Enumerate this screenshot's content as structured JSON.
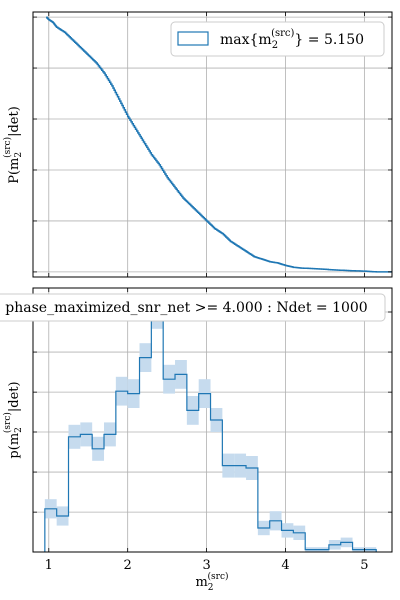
{
  "colors": {
    "series": "#1f77b4",
    "band": "#c6dbee",
    "grid": "#b0b0b0"
  },
  "chart_data": [
    {
      "type": "line",
      "ylabel_main": "P(m",
      "ylabel_sub": "2",
      "ylabel_sup": "(src)",
      "ylabel_tail": "|det)",
      "xlim": [
        0.8,
        5.35
      ],
      "ylim": [
        -0.02,
        1.02
      ],
      "legend": {
        "placement": "top-right",
        "prefix": "max{m",
        "sub": "2",
        "sup": "(src)",
        "suffix": "} = 5.150"
      },
      "grid": true,
      "x": [
        0.97,
        1.0,
        1.05,
        1.1,
        1.2,
        1.3,
        1.4,
        1.5,
        1.6,
        1.7,
        1.8,
        1.9,
        2.0,
        2.1,
        2.2,
        2.3,
        2.4,
        2.5,
        2.6,
        2.7,
        2.8,
        2.9,
        3.0,
        3.1,
        3.2,
        3.3,
        3.4,
        3.5,
        3.6,
        3.7,
        3.8,
        3.9,
        4.0,
        4.1,
        4.2,
        4.4,
        4.6,
        4.8,
        5.0,
        5.15,
        5.35
      ],
      "y": [
        1.0,
        0.99,
        0.98,
        0.96,
        0.94,
        0.91,
        0.88,
        0.85,
        0.82,
        0.78,
        0.73,
        0.67,
        0.61,
        0.56,
        0.51,
        0.46,
        0.42,
        0.37,
        0.33,
        0.29,
        0.26,
        0.23,
        0.2,
        0.17,
        0.15,
        0.12,
        0.1,
        0.08,
        0.06,
        0.05,
        0.04,
        0.035,
        0.025,
        0.018,
        0.015,
        0.012,
        0.008,
        0.005,
        0.003,
        0.0,
        0.0
      ]
    },
    {
      "type": "bar",
      "title": "phase_maximized_snr_net >= 4.000 : Ndet = 1000",
      "xlabel_main": "m",
      "xlabel_sub": "2",
      "xlabel_sup": "(src)",
      "ylabel_main": "p(m",
      "ylabel_sub": "2",
      "ylabel_sup": "(src)",
      "ylabel_tail": "|det)",
      "xlim": [
        0.8,
        5.35
      ],
      "ylim": [
        0,
        1.0
      ],
      "xticks": [
        1,
        2,
        3,
        4,
        5
      ],
      "grid": true,
      "bin_edges": [
        0.95,
        1.1,
        1.25,
        1.4,
        1.55,
        1.7,
        1.85,
        2.0,
        2.15,
        2.3,
        2.45,
        2.6,
        2.75,
        2.9,
        3.05,
        3.2,
        3.35,
        3.5,
        3.65,
        3.8,
        3.95,
        4.1,
        4.25,
        4.4,
        4.55,
        4.7,
        4.85,
        5.0,
        5.15
      ],
      "values": [
        0.18,
        0.15,
        0.48,
        0.49,
        0.43,
        0.49,
        0.67,
        0.66,
        0.81,
        1.0,
        0.72,
        0.74,
        0.59,
        0.66,
        0.55,
        0.36,
        0.36,
        0.35,
        0.1,
        0.13,
        0.09,
        0.08,
        0.01,
        0.01,
        0.03,
        0.04,
        0.01,
        0.01
      ],
      "errors": [
        0.04,
        0.04,
        0.05,
        0.05,
        0.05,
        0.05,
        0.06,
        0.06,
        0.06,
        0.07,
        0.06,
        0.06,
        0.06,
        0.06,
        0.05,
        0.05,
        0.05,
        0.05,
        0.03,
        0.04,
        0.03,
        0.03,
        0.01,
        0.01,
        0.02,
        0.02,
        0.01,
        0.01
      ]
    }
  ]
}
